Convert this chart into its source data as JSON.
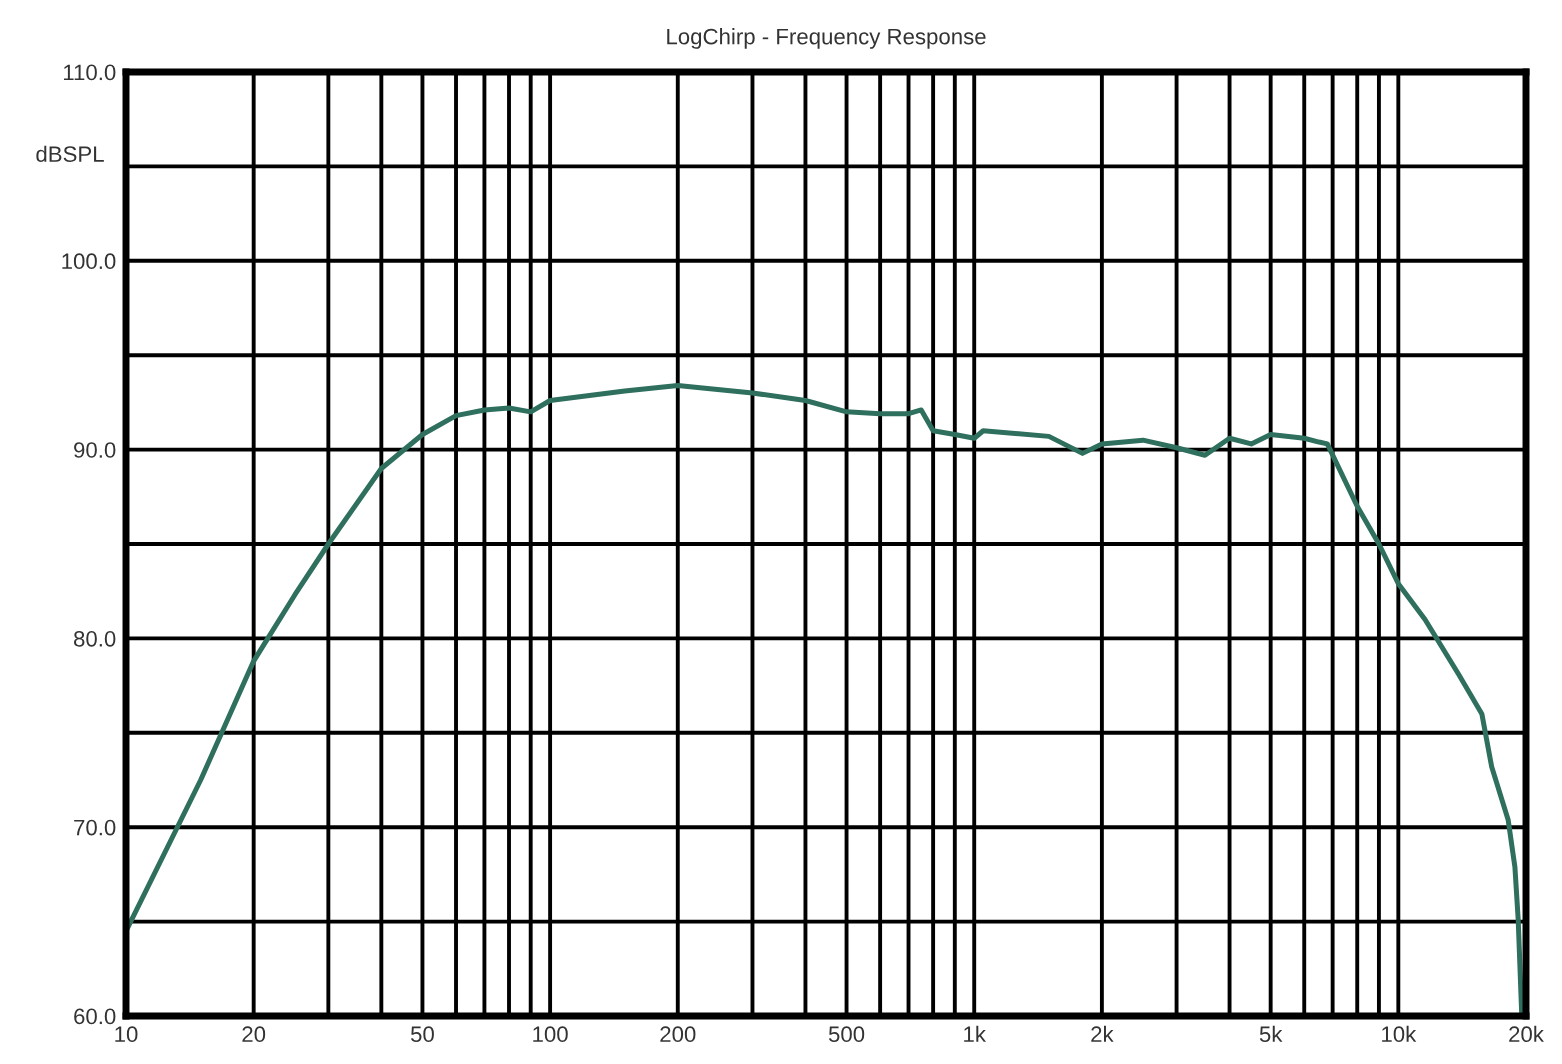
{
  "chart_data": {
    "type": "line",
    "title": "LogChirp - Frequency Response",
    "ylabel": "dBSPL",
    "log": "x",
    "grid": true,
    "marker": "none",
    "line_style": "solid",
    "xlim": [
      10,
      20000
    ],
    "xticks": [
      10,
      20,
      {
        "value": 30,
        "label": null
      },
      {
        "value": 40,
        "label": null
      },
      50,
      {
        "value": 60,
        "label": null
      },
      {
        "value": 70,
        "label": null
      },
      {
        "value": 80,
        "label": null
      },
      {
        "value": 90,
        "label": null
      },
      100,
      200,
      {
        "value": 300,
        "label": null
      },
      {
        "value": 400,
        "label": null
      },
      500,
      {
        "value": 600,
        "label": null
      },
      {
        "value": 700,
        "label": null
      },
      {
        "value": 800,
        "label": null
      },
      {
        "value": 900,
        "label": null
      },
      {
        "value": 1000,
        "label": "1k"
      },
      {
        "value": 2000,
        "label": "2k"
      },
      {
        "value": 3000,
        "label": null
      },
      {
        "value": 4000,
        "label": null
      },
      {
        "value": 5000,
        "label": "5k"
      },
      {
        "value": 6000,
        "label": null
      },
      {
        "value": 7000,
        "label": null
      },
      {
        "value": 8000,
        "label": null
      },
      {
        "value": 9000,
        "label": null
      },
      {
        "value": 10000,
        "label": "10k"
      },
      {
        "value": 20000,
        "label": "20k"
      }
    ],
    "ylim": [
      60,
      110
    ],
    "yticks": [
      {
        "value": 60,
        "label": "60.0"
      },
      {
        "value": 65,
        "label": null
      },
      {
        "value": 70,
        "label": "70.0"
      },
      {
        "value": 75,
        "label": null
      },
      {
        "value": 80,
        "label": "80.0"
      },
      {
        "value": 85,
        "label": null
      },
      {
        "value": 90,
        "label": "90.0"
      },
      {
        "value": 95,
        "label": null
      },
      {
        "value": 100,
        "label": "100.0"
      },
      {
        "value": 105,
        "label": null
      },
      {
        "value": 110,
        "label": "110.0"
      }
    ],
    "series": [
      {
        "color": "#2f6f5e",
        "x": [
          10,
          15,
          20,
          25,
          30,
          40,
          50,
          60,
          70,
          80,
          90,
          100,
          150,
          200,
          300,
          400,
          500,
          600,
          700,
          750,
          800,
          900,
          1000,
          1050,
          1500,
          1800,
          2000,
          2500,
          3000,
          3500,
          4000,
          4500,
          5000,
          6000,
          6500,
          6800,
          8000,
          9000,
          10000,
          11560,
          13870,
          15740,
          16600,
          18150,
          18830,
          19170,
          19540
        ],
        "values": [
          64.5,
          72.5,
          78.8,
          82.3,
          85.0,
          89.0,
          90.8,
          91.8,
          92.1,
          92.2,
          92.0,
          92.6,
          93.1,
          93.4,
          93.0,
          92.6,
          92.0,
          91.9,
          91.9,
          92.1,
          91.0,
          90.8,
          90.6,
          91.0,
          90.7,
          89.8,
          90.3,
          90.5,
          90.1,
          89.7,
          90.6,
          90.3,
          90.8,
          90.6,
          90.4,
          90.3,
          87.0,
          85.0,
          82.9,
          81.0,
          78.1,
          76.0,
          73.2,
          70.4,
          67.9,
          65.1,
          60.1
        ]
      }
    ]
  }
}
